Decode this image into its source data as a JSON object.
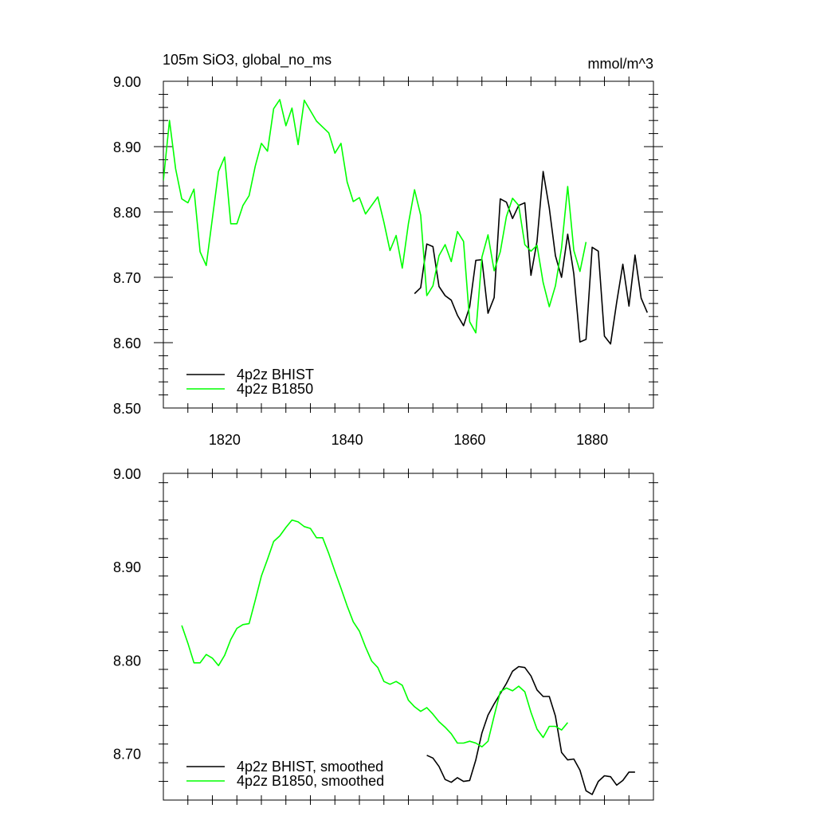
{
  "chart_data": [
    {
      "type": "line",
      "title": "105m SiO3, global_no_ms",
      "units": "mmol/m^3",
      "xlim": [
        1810,
        1890
      ],
      "ylim": [
        8.5,
        9.0
      ],
      "xticks": [
        1820,
        1840,
        1860,
        1880
      ],
      "yticks": [
        8.5,
        8.6,
        8.7,
        8.8,
        8.9,
        9.0
      ],
      "ytick_labels": [
        "8.50",
        "8.60",
        "8.70",
        "8.80",
        "8.90",
        "9.00"
      ],
      "legend_position": "bottom-left",
      "series": [
        {
          "name": "4p2z BHIST",
          "color": "#000000",
          "x": [
            1851,
            1852,
            1853,
            1854,
            1855,
            1856,
            1857,
            1858,
            1859,
            1860,
            1861,
            1862,
            1863,
            1864,
            1865,
            1866,
            1867,
            1868,
            1869,
            1870,
            1871,
            1872,
            1873,
            1874,
            1875,
            1876,
            1877,
            1878,
            1879,
            1880,
            1881,
            1882,
            1883,
            1884,
            1885,
            1886,
            1887,
            1888,
            1889
          ],
          "y": [
            8.675,
            8.684,
            8.751,
            8.747,
            8.686,
            8.672,
            8.665,
            8.642,
            8.626,
            8.655,
            8.726,
            8.727,
            8.645,
            8.669,
            8.82,
            8.815,
            8.79,
            8.81,
            8.814,
            8.703,
            8.755,
            8.862,
            8.806,
            8.733,
            8.7,
            8.766,
            8.705,
            8.601,
            8.605,
            8.746,
            8.74,
            8.61,
            8.598,
            8.662,
            8.72,
            8.656,
            8.734,
            8.668,
            8.646
          ]
        },
        {
          "name": "4p2z B1850",
          "color": "#00ff00",
          "x": [
            1810,
            1811,
            1812,
            1813,
            1814,
            1815,
            1816,
            1817,
            1818,
            1819,
            1820,
            1821,
            1822,
            1823,
            1824,
            1825,
            1826,
            1827,
            1828,
            1829,
            1830,
            1831,
            1832,
            1833,
            1834,
            1835,
            1836,
            1837,
            1838,
            1839,
            1840,
            1841,
            1842,
            1843,
            1844,
            1845,
            1846,
            1847,
            1848,
            1849,
            1850,
            1851,
            1852,
            1853,
            1854,
            1855,
            1856,
            1857,
            1858,
            1859,
            1860,
            1861,
            1862,
            1863,
            1864,
            1865,
            1866,
            1867,
            1868,
            1869,
            1870,
            1871,
            1872,
            1873,
            1874,
            1875,
            1876,
            1877,
            1878,
            1879
          ],
          "y": [
            8.848,
            8.94,
            8.866,
            8.82,
            8.814,
            8.835,
            8.739,
            8.718,
            8.79,
            8.862,
            8.884,
            8.782,
            8.782,
            8.81,
            8.825,
            8.87,
            8.905,
            8.893,
            8.958,
            8.972,
            8.932,
            8.959,
            8.903,
            8.971,
            8.955,
            8.939,
            8.93,
            8.921,
            8.89,
            8.905,
            8.846,
            8.816,
            8.822,
            8.797,
            8.81,
            8.823,
            8.784,
            8.741,
            8.764,
            8.714,
            8.782,
            8.834,
            8.795,
            8.672,
            8.687,
            8.733,
            8.75,
            8.724,
            8.77,
            8.755,
            8.632,
            8.615,
            8.731,
            8.765,
            8.71,
            8.739,
            8.793,
            8.821,
            8.81,
            8.75,
            8.74,
            8.749,
            8.692,
            8.655,
            8.687,
            8.745,
            8.839,
            8.741,
            8.709,
            8.754
          ]
        }
      ]
    },
    {
      "type": "line",
      "xlim": [
        1810,
        1890
      ],
      "ylim": [
        8.65,
        9.0
      ],
      "xticks": [
        1820,
        1840,
        1860,
        1880
      ],
      "yticks": [
        8.7,
        8.8,
        8.9,
        9.0
      ],
      "ytick_labels": [
        "8.70",
        "8.80",
        "8.90",
        "9.00"
      ],
      "legend_position": "bottom-left",
      "series": [
        {
          "name": "4p2z BHIST, smoothed",
          "color": "#000000",
          "x": [
            1853,
            1854,
            1855,
            1856,
            1857,
            1858,
            1859,
            1860,
            1861,
            1862,
            1863,
            1864,
            1865,
            1866,
            1867,
            1868,
            1869,
            1870,
            1871,
            1872,
            1873,
            1874,
            1875,
            1876,
            1877,
            1878,
            1879,
            1880,
            1881,
            1882,
            1883,
            1884,
            1885,
            1886,
            1887
          ],
          "y": [
            8.698,
            8.695,
            8.686,
            8.672,
            8.669,
            8.674,
            8.67,
            8.671,
            8.693,
            8.722,
            8.741,
            8.753,
            8.764,
            8.775,
            8.788,
            8.793,
            8.792,
            8.783,
            8.768,
            8.761,
            8.761,
            8.74,
            8.701,
            8.693,
            8.694,
            8.682,
            8.66,
            8.656,
            8.67,
            8.676,
            8.675,
            8.666,
            8.671,
            8.68,
            8.68
          ]
        },
        {
          "name": "4p2z B1850, smoothed",
          "color": "#00ff00",
          "x": [
            1813,
            1814,
            1815,
            1816,
            1817,
            1818,
            1819,
            1820,
            1821,
            1822,
            1823,
            1824,
            1825,
            1826,
            1827,
            1828,
            1829,
            1830,
            1831,
            1832,
            1833,
            1834,
            1835,
            1836,
            1837,
            1838,
            1839,
            1840,
            1841,
            1842,
            1843,
            1844,
            1845,
            1846,
            1847,
            1848,
            1849,
            1850,
            1851,
            1852,
            1853,
            1854,
            1855,
            1856,
            1857,
            1858,
            1859,
            1860,
            1861,
            1862,
            1863,
            1864,
            1865,
            1866,
            1867,
            1868,
            1869,
            1870,
            1871,
            1872,
            1873,
            1874,
            1875,
            1876
          ],
          "y": [
            8.837,
            8.818,
            8.797,
            8.797,
            8.806,
            8.802,
            8.794,
            8.805,
            8.822,
            8.834,
            8.838,
            8.839,
            8.864,
            8.89,
            8.908,
            8.927,
            8.933,
            8.942,
            8.95,
            8.948,
            8.943,
            8.941,
            8.931,
            8.931,
            8.914,
            8.895,
            8.877,
            8.858,
            8.841,
            8.831,
            8.814,
            8.799,
            8.792,
            8.777,
            8.774,
            8.777,
            8.773,
            8.757,
            8.75,
            8.745,
            8.749,
            8.742,
            8.734,
            8.728,
            8.721,
            8.711,
            8.711,
            8.713,
            8.711,
            8.707,
            8.713,
            8.74,
            8.766,
            8.77,
            8.767,
            8.772,
            8.766,
            8.744,
            8.726,
            8.717,
            8.729,
            8.729,
            8.725,
            8.733
          ]
        }
      ]
    }
  ]
}
